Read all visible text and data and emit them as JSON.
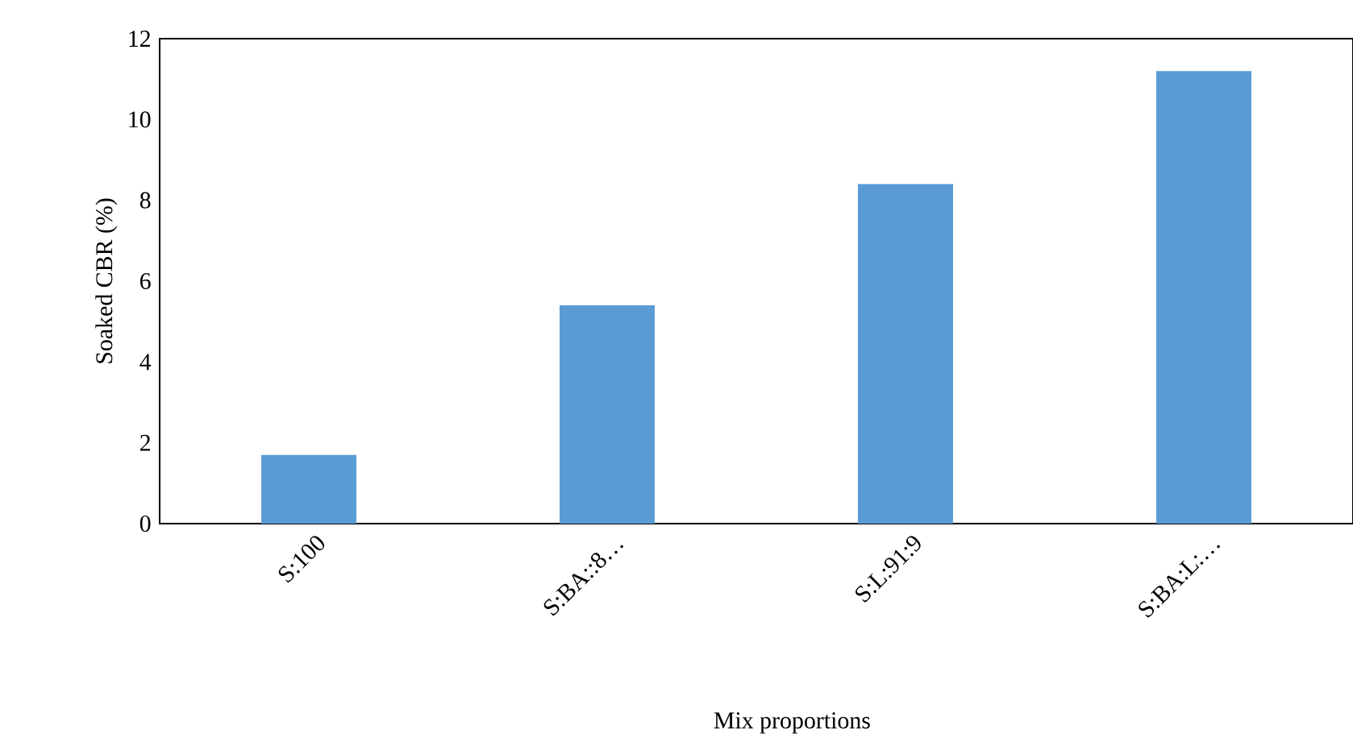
{
  "chart_data": {
    "type": "bar",
    "xlabel": "Mix proportions",
    "ylabel": "Soaked CBR (%)",
    "categories": [
      "S:100",
      "S:BA::8…",
      "S:L:91:9",
      "S:BA:L:…"
    ],
    "values": [
      1.7,
      5.4,
      8.4,
      11.2
    ],
    "color": "#5b9bd5",
    "ylim": [
      0,
      12
    ],
    "yticks": [
      0,
      2,
      4,
      6,
      8,
      10,
      12
    ]
  }
}
